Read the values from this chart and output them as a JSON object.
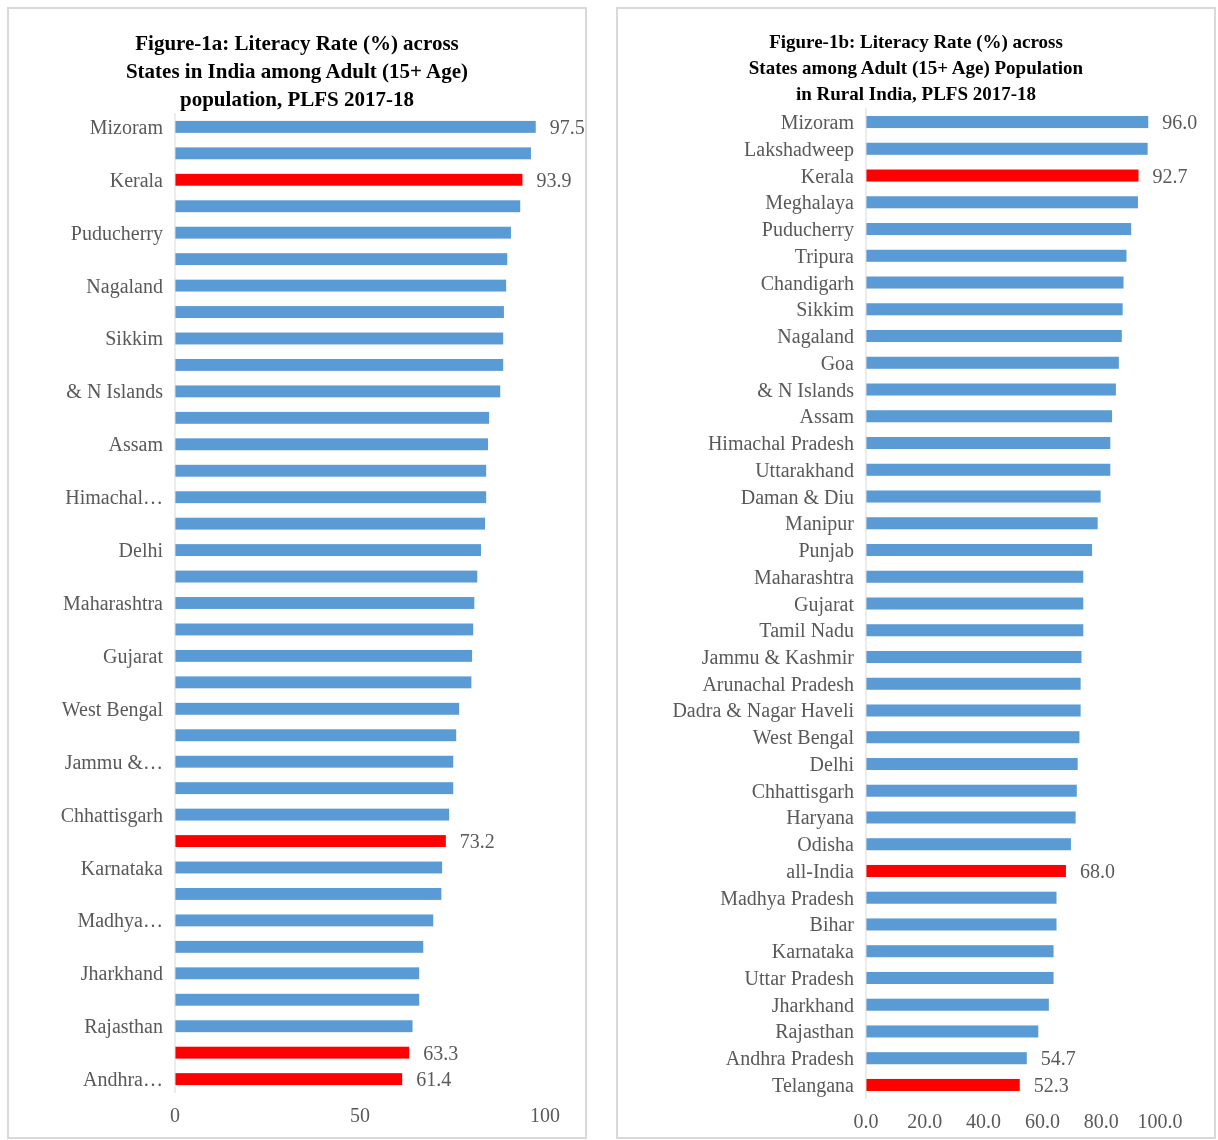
{
  "chart_data": [
    {
      "type": "bar",
      "orientation": "horizontal",
      "title": "Figure-1a: Literacy Rate (%) across\nStates in India among Adult (15+ Age)\npopulation, PLFS 2017-18",
      "categories": [
        "Mizoram",
        null,
        "Kerala",
        null,
        "Puducherry",
        null,
        "Nagaland",
        null,
        "Sikkim",
        null,
        "& N Islands",
        null,
        "Assam",
        null,
        "Himachal…",
        null,
        "Delhi",
        null,
        "Maharashtra",
        null,
        "Gujarat",
        null,
        "West Bengal",
        null,
        "Jammu &…",
        null,
        "Chhattisgarh",
        null,
        "Karnataka",
        null,
        "Madhya…",
        null,
        "Jharkhand",
        null,
        "Rajasthan",
        null,
        "Andhra…"
      ],
      "values": [
        97.5,
        96.2,
        93.9,
        93.3,
        90.8,
        89.8,
        89.5,
        88.9,
        88.7,
        88.7,
        87.9,
        84.9,
        84.6,
        84.1,
        84.1,
        83.8,
        82.7,
        81.7,
        80.9,
        80.6,
        80.3,
        80.1,
        76.8,
        76.0,
        75.2,
        75.2,
        74.1,
        73.2,
        72.2,
        72.0,
        69.8,
        67.1,
        66.0,
        66.0,
        64.2,
        63.3,
        61.4
      ],
      "colors": [
        "#5b9bd5",
        "#5b9bd5",
        "#ff0000",
        "#5b9bd5",
        "#5b9bd5",
        "#5b9bd5",
        "#5b9bd5",
        "#5b9bd5",
        "#5b9bd5",
        "#5b9bd5",
        "#5b9bd5",
        "#5b9bd5",
        "#5b9bd5",
        "#5b9bd5",
        "#5b9bd5",
        "#5b9bd5",
        "#5b9bd5",
        "#5b9bd5",
        "#5b9bd5",
        "#5b9bd5",
        "#5b9bd5",
        "#5b9bd5",
        "#5b9bd5",
        "#5b9bd5",
        "#5b9bd5",
        "#5b9bd5",
        "#5b9bd5",
        "#ff0000",
        "#5b9bd5",
        "#5b9bd5",
        "#5b9bd5",
        "#5b9bd5",
        "#5b9bd5",
        "#5b9bd5",
        "#5b9bd5",
        "#ff0000",
        "#ff0000"
      ],
      "value_labels": [
        "97.5",
        null,
        "93.9",
        null,
        null,
        null,
        null,
        null,
        null,
        null,
        null,
        null,
        null,
        null,
        null,
        null,
        null,
        null,
        null,
        null,
        null,
        null,
        null,
        null,
        null,
        null,
        null,
        "73.2",
        null,
        null,
        null,
        null,
        null,
        null,
        null,
        "63.3",
        "61.4"
      ],
      "xlim": [
        0,
        100
      ],
      "xticks": [
        0,
        50,
        100
      ]
    },
    {
      "type": "bar",
      "orientation": "horizontal",
      "title": "Figure-1b: Literacy Rate (%) across\nStates among Adult (15+ Age) Population\nin Rural India, PLFS 2017-18",
      "categories": [
        "Mizoram",
        "Lakshadweep",
        "Kerala",
        "Meghalaya",
        "Puducherry",
        "Tripura",
        "Chandigarh",
        "Sikkim",
        "Nagaland",
        "Goa",
        "& N Islands",
        "Assam",
        "Himachal Pradesh",
        "Uttarakhand",
        "Daman & Diu",
        "Manipur",
        "Punjab",
        "Maharashtra",
        "Gujarat",
        "Tamil Nadu",
        "Jammu & Kashmir",
        "Arunachal Pradesh",
        "Dadra & Nagar Haveli",
        "West Bengal",
        "Delhi",
        "Chhattisgarh",
        "Haryana",
        "Odisha",
        "all-India",
        "Madhya Pradesh",
        "Bihar",
        "Karnataka",
        "Uttar Pradesh",
        "Jharkhand",
        "Rajasthan",
        "Andhra Pradesh",
        "Telangana"
      ],
      "values": [
        96.0,
        95.8,
        92.7,
        92.5,
        90.2,
        88.6,
        87.6,
        87.3,
        87.0,
        86.0,
        85.0,
        83.7,
        83.1,
        83.1,
        79.8,
        78.8,
        76.9,
        73.9,
        73.9,
        73.9,
        73.3,
        73.0,
        73.0,
        72.6,
        72.0,
        71.7,
        71.3,
        69.7,
        68.0,
        64.8,
        64.8,
        63.8,
        63.8,
        62.2,
        58.6,
        54.7,
        52.3
      ],
      "colors": [
        "#5b9bd5",
        "#5b9bd5",
        "#ff0000",
        "#5b9bd5",
        "#5b9bd5",
        "#5b9bd5",
        "#5b9bd5",
        "#5b9bd5",
        "#5b9bd5",
        "#5b9bd5",
        "#5b9bd5",
        "#5b9bd5",
        "#5b9bd5",
        "#5b9bd5",
        "#5b9bd5",
        "#5b9bd5",
        "#5b9bd5",
        "#5b9bd5",
        "#5b9bd5",
        "#5b9bd5",
        "#5b9bd5",
        "#5b9bd5",
        "#5b9bd5",
        "#5b9bd5",
        "#5b9bd5",
        "#5b9bd5",
        "#5b9bd5",
        "#5b9bd5",
        "#ff0000",
        "#5b9bd5",
        "#5b9bd5",
        "#5b9bd5",
        "#5b9bd5",
        "#5b9bd5",
        "#5b9bd5",
        "#5b9bd5",
        "#ff0000"
      ],
      "value_labels": [
        "96.0",
        null,
        "92.7",
        null,
        null,
        null,
        null,
        null,
        null,
        null,
        null,
        null,
        null,
        null,
        null,
        null,
        null,
        null,
        null,
        null,
        null,
        null,
        null,
        null,
        null,
        null,
        null,
        null,
        "68.0",
        null,
        null,
        null,
        null,
        null,
        null,
        "54.7",
        "52.3"
      ],
      "xlim": [
        0,
        100
      ],
      "xticks": [
        {
          "value": 0,
          "label": "0.0"
        },
        {
          "value": 20,
          "label": "20.0"
        },
        {
          "value": 40,
          "label": "40.0"
        },
        {
          "value": 60,
          "label": "60.0"
        },
        {
          "value": 80,
          "label": "80.0"
        },
        {
          "value": 100,
          "label": "100.0"
        }
      ]
    }
  ]
}
